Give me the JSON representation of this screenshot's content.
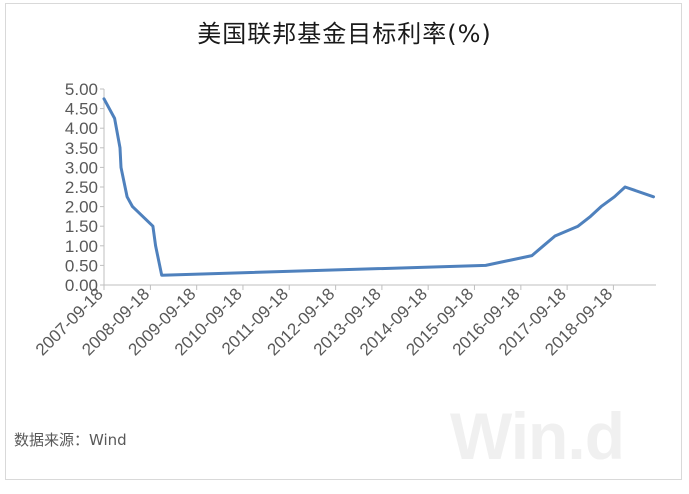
{
  "chart_data": {
    "type": "line",
    "title": "美国联邦基金目标利率(%)",
    "xlabel": "",
    "ylabel": "",
    "ylim": [
      0,
      5
    ],
    "y_ticks": [
      "0.00",
      "0.50",
      "1.00",
      "1.50",
      "2.00",
      "2.50",
      "3.00",
      "3.50",
      "4.00",
      "4.50",
      "5.00"
    ],
    "x_ticks": [
      "2007-09-18",
      "2008-09-18",
      "2009-09-18",
      "2010-09-18",
      "2011-09-18",
      "2012-09-18",
      "2013-09-18",
      "2014-09-18",
      "2015-09-18",
      "2016-09-18",
      "2017-09-18",
      "2018-09-18"
    ],
    "grid": false,
    "legend": "none",
    "series": [
      {
        "color": "#4f81bd",
        "points": [
          [
            "2007-09-18",
            4.75
          ],
          [
            "2007-12-11",
            4.25
          ],
          [
            "2008-01-22",
            3.5
          ],
          [
            "2008-01-30",
            3.0
          ],
          [
            "2008-03-18",
            2.25
          ],
          [
            "2008-04-30",
            2.0
          ],
          [
            "2008-10-08",
            1.5
          ],
          [
            "2008-10-29",
            1.0
          ],
          [
            "2008-12-16",
            0.25
          ],
          [
            "2015-12-16",
            0.5
          ],
          [
            "2016-12-14",
            0.75
          ],
          [
            "2017-03-15",
            1.0
          ],
          [
            "2017-06-14",
            1.25
          ],
          [
            "2017-12-13",
            1.5
          ],
          [
            "2018-03-21",
            1.75
          ],
          [
            "2018-06-13",
            2.0
          ],
          [
            "2018-09-26",
            2.25
          ],
          [
            "2018-12-19",
            2.5
          ],
          [
            "2019-07-31",
            2.25
          ]
        ]
      }
    ]
  },
  "source_text": "数据来源：Wind",
  "watermark_text": "Win.d"
}
